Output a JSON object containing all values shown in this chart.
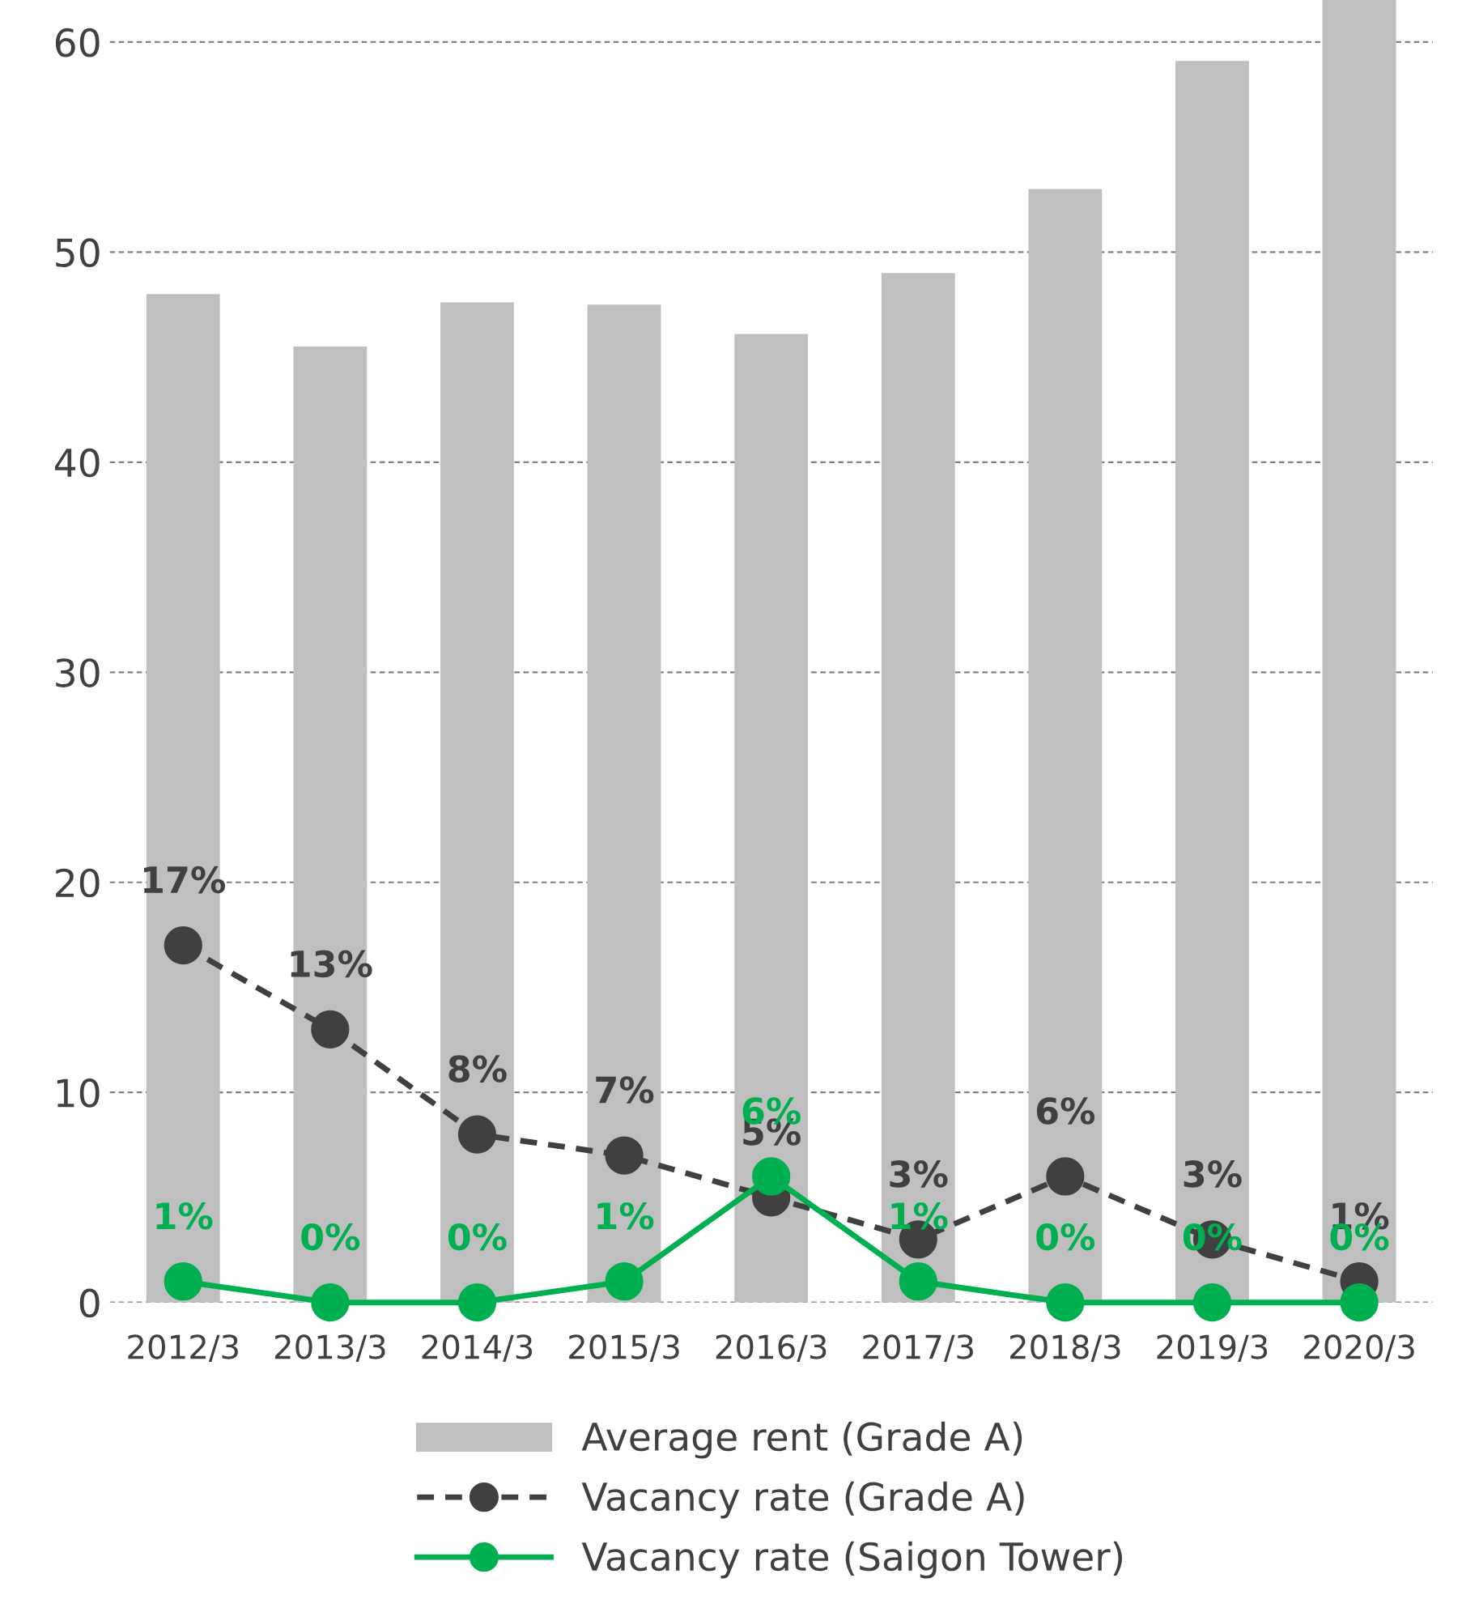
{
  "chart_data": {
    "type": "bar",
    "categories": [
      "2012/3",
      "2013/3",
      "2014/3",
      "2015/3",
      "2016/3",
      "2017/3",
      "2018/3",
      "2019/3",
      "2020/3"
    ],
    "series": [
      {
        "name": "Average rent (Grade A)",
        "color": "#bfbfbf",
        "values": [
          48,
          45.5,
          47.6,
          47.5,
          46.1,
          49,
          53,
          59.1,
          62
        ]
      },
      {
        "name": "Vacancy rate (Grade A)",
        "type": "line",
        "color": "#404040",
        "line_style": "dashed",
        "marker": "circle",
        "values": [
          17,
          13,
          8,
          7,
          5,
          3,
          6,
          3,
          1
        ],
        "value_labels": [
          "17%",
          "13%",
          "8%",
          "7%",
          "5%",
          "3%",
          "6%",
          "3%",
          "1%"
        ]
      },
      {
        "name": "Vacancy rate (Saigon Tower)",
        "type": "line",
        "color": "#00b050",
        "line_style": "solid",
        "marker": "circle",
        "values": [
          1,
          0,
          0,
          1,
          6,
          1,
          0,
          0,
          0
        ],
        "value_labels": [
          "1%",
          "0%",
          "0%",
          "1%",
          "6%",
          "1%",
          "0%",
          "0%",
          "0%"
        ]
      }
    ],
    "ylim": [
      0,
      62
    ],
    "yticks": [
      0,
      10,
      20,
      30,
      40,
      50,
      60
    ],
    "grid": "y",
    "legend": "bottom"
  }
}
